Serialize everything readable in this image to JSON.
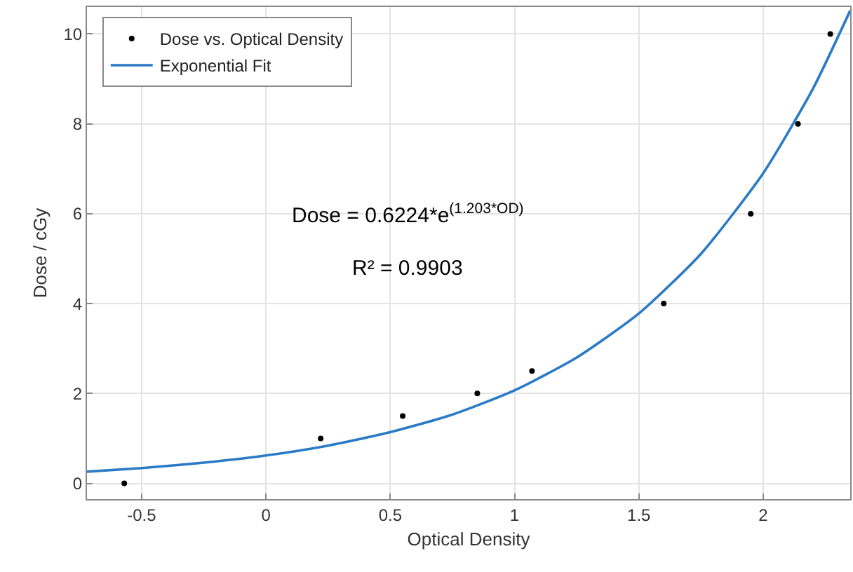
{
  "chart_data": {
    "type": "scatter",
    "xlabel": "Optical Density",
    "ylabel": "Dose / cGy",
    "series": [
      {
        "name": "Dose vs. Optical Density",
        "marker": "circle",
        "color": "#000000",
        "x": [
          -0.57,
          0.22,
          0.55,
          0.85,
          1.07,
          1.6,
          1.95,
          2.14,
          2.27
        ],
        "values": [
          0,
          1,
          1.5,
          2,
          2.5,
          4,
          6,
          8,
          10
        ]
      },
      {
        "name": "Exponential Fit",
        "type": "line",
        "marker": "none",
        "color": "#2a7bc6",
        "x": [
          -0.72,
          -0.5,
          -0.25,
          0,
          0.25,
          0.5,
          0.75,
          1.0,
          1.25,
          1.5,
          1.75,
          2.0,
          2.2,
          2.35
        ],
        "values": [
          0.26,
          0.34,
          0.46,
          0.62,
          0.84,
          1.14,
          1.53,
          2.07,
          2.8,
          3.78,
          5.11,
          6.9,
          8.78,
          10.52
        ]
      }
    ],
    "annotations": [
      "Dose = 0.6224*e$^{(1.203*OD)}$",
      "R² = 0.9903"
    ],
    "xlim": [
      -0.72,
      2.35
    ],
    "xticks": [
      -0.5,
      0,
      0.5,
      1,
      1.5,
      2
    ],
    "ylim": [
      -0.35,
      10.6
    ],
    "yticks": [
      0,
      2,
      4,
      6,
      8,
      10
    ],
    "grid": true,
    "legend": "top left",
    "line_style": "solid"
  }
}
